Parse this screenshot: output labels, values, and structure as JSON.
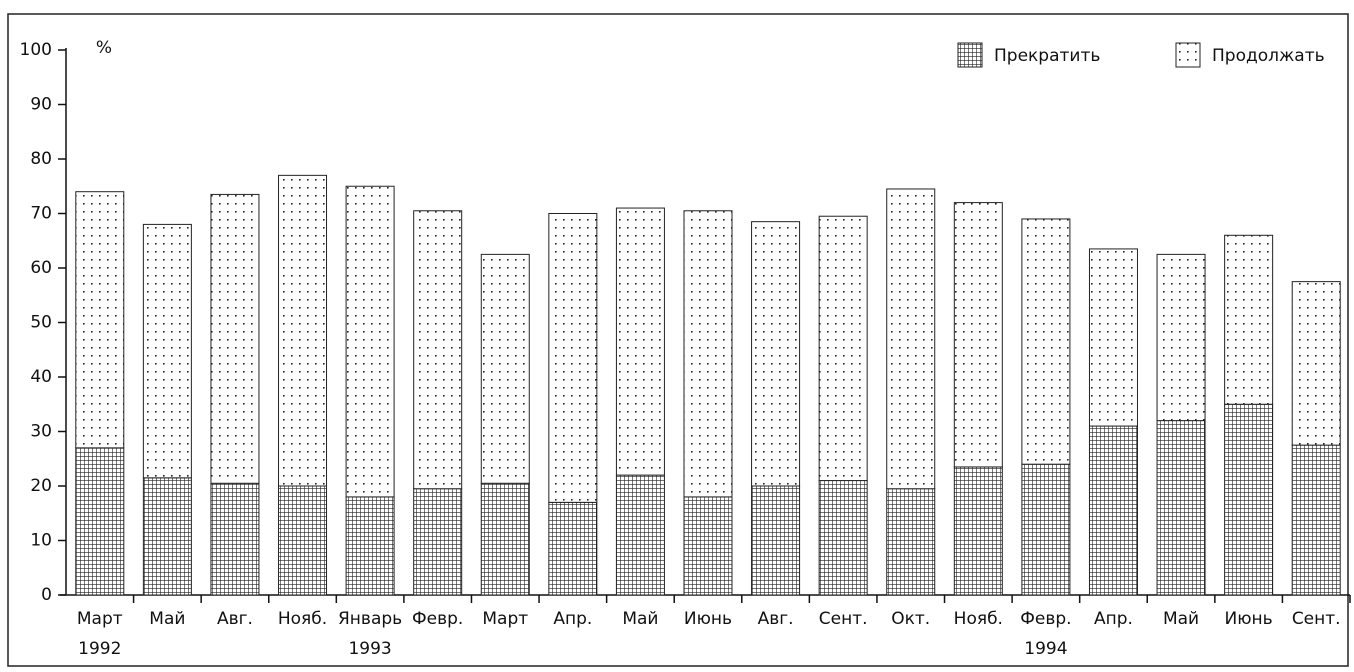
{
  "chart_data": {
    "type": "stacked-bar",
    "y_unit_label": "%",
    "categories": [
      "Март",
      "Май",
      "Авг.",
      "Нояб.",
      "Январь",
      "Февр.",
      "Март",
      "Апр.",
      "Май",
      "Июнь",
      "Авг.",
      "Сент.",
      "Окт.",
      "Нояб.",
      "Февр.",
      "Апр.",
      "Май",
      "Июнь",
      "Сент."
    ],
    "years": [
      "1992",
      null,
      null,
      null,
      "1993",
      null,
      null,
      null,
      null,
      null,
      null,
      null,
      null,
      null,
      "1994",
      null,
      null,
      null,
      null
    ],
    "series": [
      {
        "name": "Прекратить",
        "color": "#222",
        "pattern": "grid",
        "values": [
          27,
          21.5,
          20.5,
          20,
          18,
          19.5,
          20.5,
          17,
          22,
          18,
          20,
          21,
          19.5,
          23.5,
          24,
          31,
          32,
          35,
          27.5
        ]
      },
      {
        "name": "Продолжать",
        "color": "#222",
        "pattern": "dots",
        "values": [
          47,
          46.5,
          53,
          57,
          57,
          51,
          42,
          53,
          49,
          52.5,
          48.5,
          48.5,
          55,
          48.5,
          45,
          32.5,
          30.5,
          31,
          30
        ]
      }
    ],
    "ylim": [
      0,
      100
    ],
    "yticks": [
      0,
      10,
      20,
      30,
      40,
      50,
      60,
      70,
      80,
      90,
      100
    ],
    "legend": "top-right"
  }
}
